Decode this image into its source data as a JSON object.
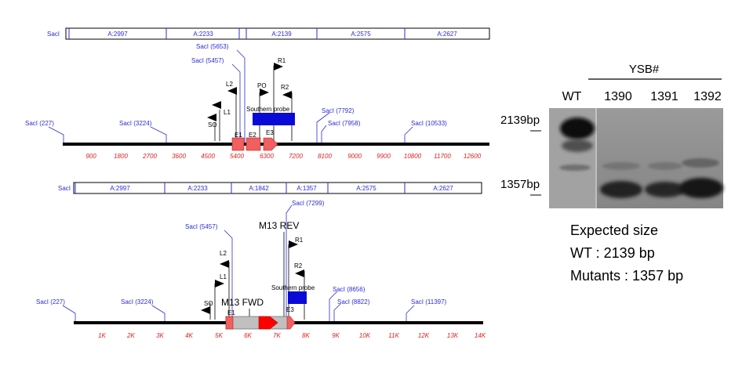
{
  "maps": [
    {
      "id": "wt-map",
      "fragment_bar": [
        "SacI",
        "A:2997",
        "A:2233",
        "A:2139",
        "A:2575",
        "A:2627"
      ],
      "saci_sites": [
        "SacI (227)",
        "SacI (3224)",
        "SacI (5457)",
        "SacI (5653)",
        "SacI (7792)",
        "SacI (7958)",
        "SacI (10533)"
      ],
      "scale_ticks": [
        "900",
        "1800",
        "2700",
        "3600",
        "4500",
        "5400",
        "6300",
        "7200",
        "8100",
        "9000",
        "9900",
        "10800",
        "11700",
        "12600"
      ],
      "primers": [
        "SO",
        "L1",
        "L2",
        "PO",
        "R1",
        "R2"
      ],
      "exons": [
        "E1",
        "E2",
        "E3"
      ],
      "probe_label": "Southern probe"
    },
    {
      "id": "mutant-map",
      "fragment_bar": [
        "SacI",
        "A:2997",
        "A:2233",
        "A:1842",
        "A:1357",
        "A:2575",
        "A:2627"
      ],
      "saci_sites": [
        "SacI (227)",
        "SacI (3224)",
        "SacI (5457)",
        "SacI (7299)",
        "SacI (8656)",
        "SacI (8822)",
        "SacI (11397)"
      ],
      "scale_ticks": [
        "1K",
        "2K",
        "3K",
        "4K",
        "5K",
        "6K",
        "7K",
        "8K",
        "9K",
        "10K",
        "11K",
        "12K",
        "13K",
        "14K"
      ],
      "primers": [
        "SO",
        "L1",
        "L2",
        "R1",
        "R2"
      ],
      "primer_big": [
        "M13 REV",
        "M13 FWD"
      ],
      "exons": [
        "E1",
        "E3"
      ],
      "probe_label": "Southern probe"
    }
  ],
  "blot": {
    "group_label": "YSB#",
    "lanes": [
      "WT",
      "1390",
      "1391",
      "1392"
    ],
    "markers": [
      "2139bp",
      "1357bp"
    ]
  },
  "notes": {
    "title": "Expected size",
    "wt": "WT : 2139 bp",
    "mutants": "Mutants : 1357 bp"
  },
  "colors": {
    "site_blue": "#2b2bd6",
    "exon_red": "#f06060",
    "scale_red": "#e01e1e",
    "probe_blue": "#0a0ad8",
    "cassette_gray": "#c0c0c0"
  }
}
